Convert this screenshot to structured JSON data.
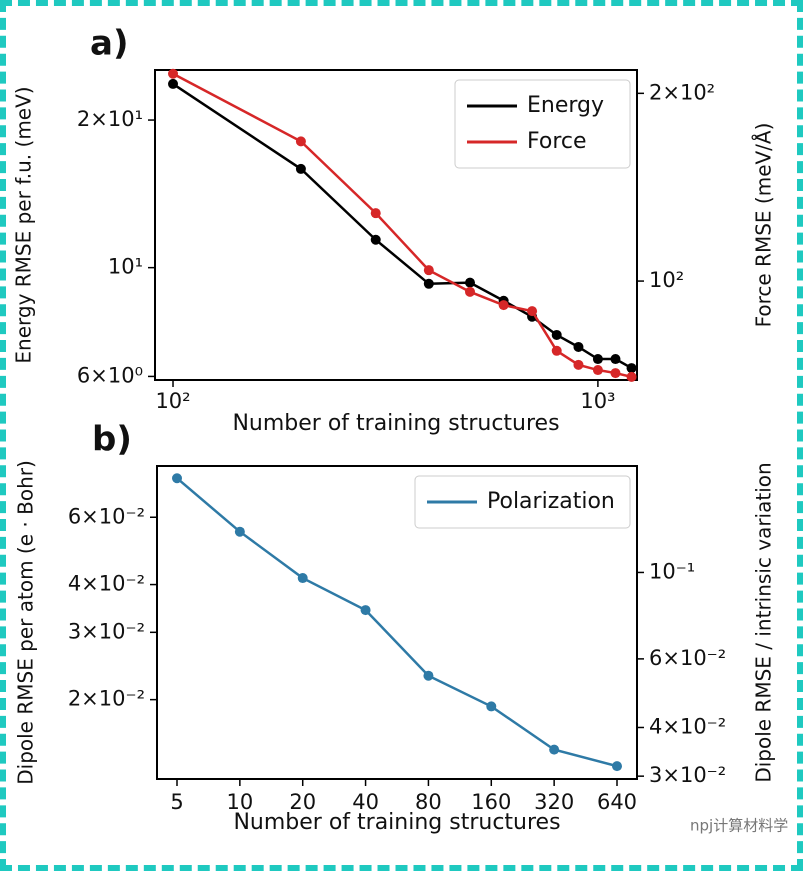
{
  "chart_data": [
    {
      "type": "line",
      "panel_label": "a)",
      "xlabel": "Number of training structures",
      "ylabel": "Energy RMSE per f.u. (meV)",
      "y2label": "Force RMSE (meV/Å)",
      "xscale": "log",
      "yscale": "log",
      "x": [
        100,
        200,
        300,
        400,
        500,
        600,
        700,
        800,
        900,
        1000,
        1100,
        1200
      ],
      "xlim": [
        90.7,
        1236
      ],
      "xticks": [
        {
          "value": 100,
          "label": "10²"
        },
        {
          "value": 1000,
          "label": "10³"
        }
      ],
      "ylim": [
        5.9,
        25.3
      ],
      "yticks": [
        {
          "value": 6,
          "label": "6×10⁰"
        },
        {
          "value": 10,
          "label": "10¹"
        },
        {
          "value": 20,
          "label": "2×10¹"
        }
      ],
      "y2lim": [
        69.4,
        218
      ],
      "y2ticks": [
        {
          "value": 100,
          "label": "10²"
        },
        {
          "value": 200,
          "label": "2×10²"
        }
      ],
      "legend": "upper right",
      "series": [
        {
          "name": "Energy",
          "color": "#000000",
          "values": [
            23.7,
            15.9,
            11.4,
            9.27,
            9.32,
            8.56,
            7.94,
            7.29,
            6.89,
            6.51,
            6.51,
            6.24
          ]
        },
        {
          "name": "Force",
          "color": "#d62728",
          "axis": "y2",
          "values": [
            215,
            167.5,
            128.5,
            104.1,
            96.1,
            91.5,
            89.5,
            77.3,
            73.4,
            72.0,
            71.2,
            70.2
          ]
        }
      ]
    },
    {
      "type": "line",
      "panel_label": "b)",
      "xlabel": "Number of training structures",
      "ylabel": "Dipole RMSE per atom (e · Bohr)",
      "y2label": "Dipole RMSE / intrinsic variation",
      "yscale": "log",
      "categories": [
        "5",
        "10",
        "20",
        "40",
        "80",
        "160",
        "320",
        "640"
      ],
      "ylim": [
        0.0124,
        0.0817
      ],
      "yticks": [
        {
          "value": 0.02,
          "label": "2×10⁻²"
        },
        {
          "value": 0.03,
          "label": "3×10⁻²"
        },
        {
          "value": 0.04,
          "label": "4×10⁻²"
        },
        {
          "value": 0.06,
          "label": "6×10⁻²"
        }
      ],
      "y2lim": [
        0.0295,
        0.1876
      ],
      "y2ticks": [
        {
          "value": 0.03,
          "label": "3×10⁻²"
        },
        {
          "value": 0.04,
          "label": "4×10⁻²"
        },
        {
          "value": 0.06,
          "label": "6×10⁻²"
        },
        {
          "value": 0.1,
          "label": "10⁻¹"
        }
      ],
      "legend": "upper right",
      "series": [
        {
          "name": "Polarization",
          "color": "#2e7aa6",
          "values": [
            0.0759,
            0.055,
            0.0416,
            0.0343,
            0.0231,
            0.0192,
            0.0148,
            0.0134
          ]
        }
      ]
    }
  ],
  "watermark": "npj计算材料学"
}
